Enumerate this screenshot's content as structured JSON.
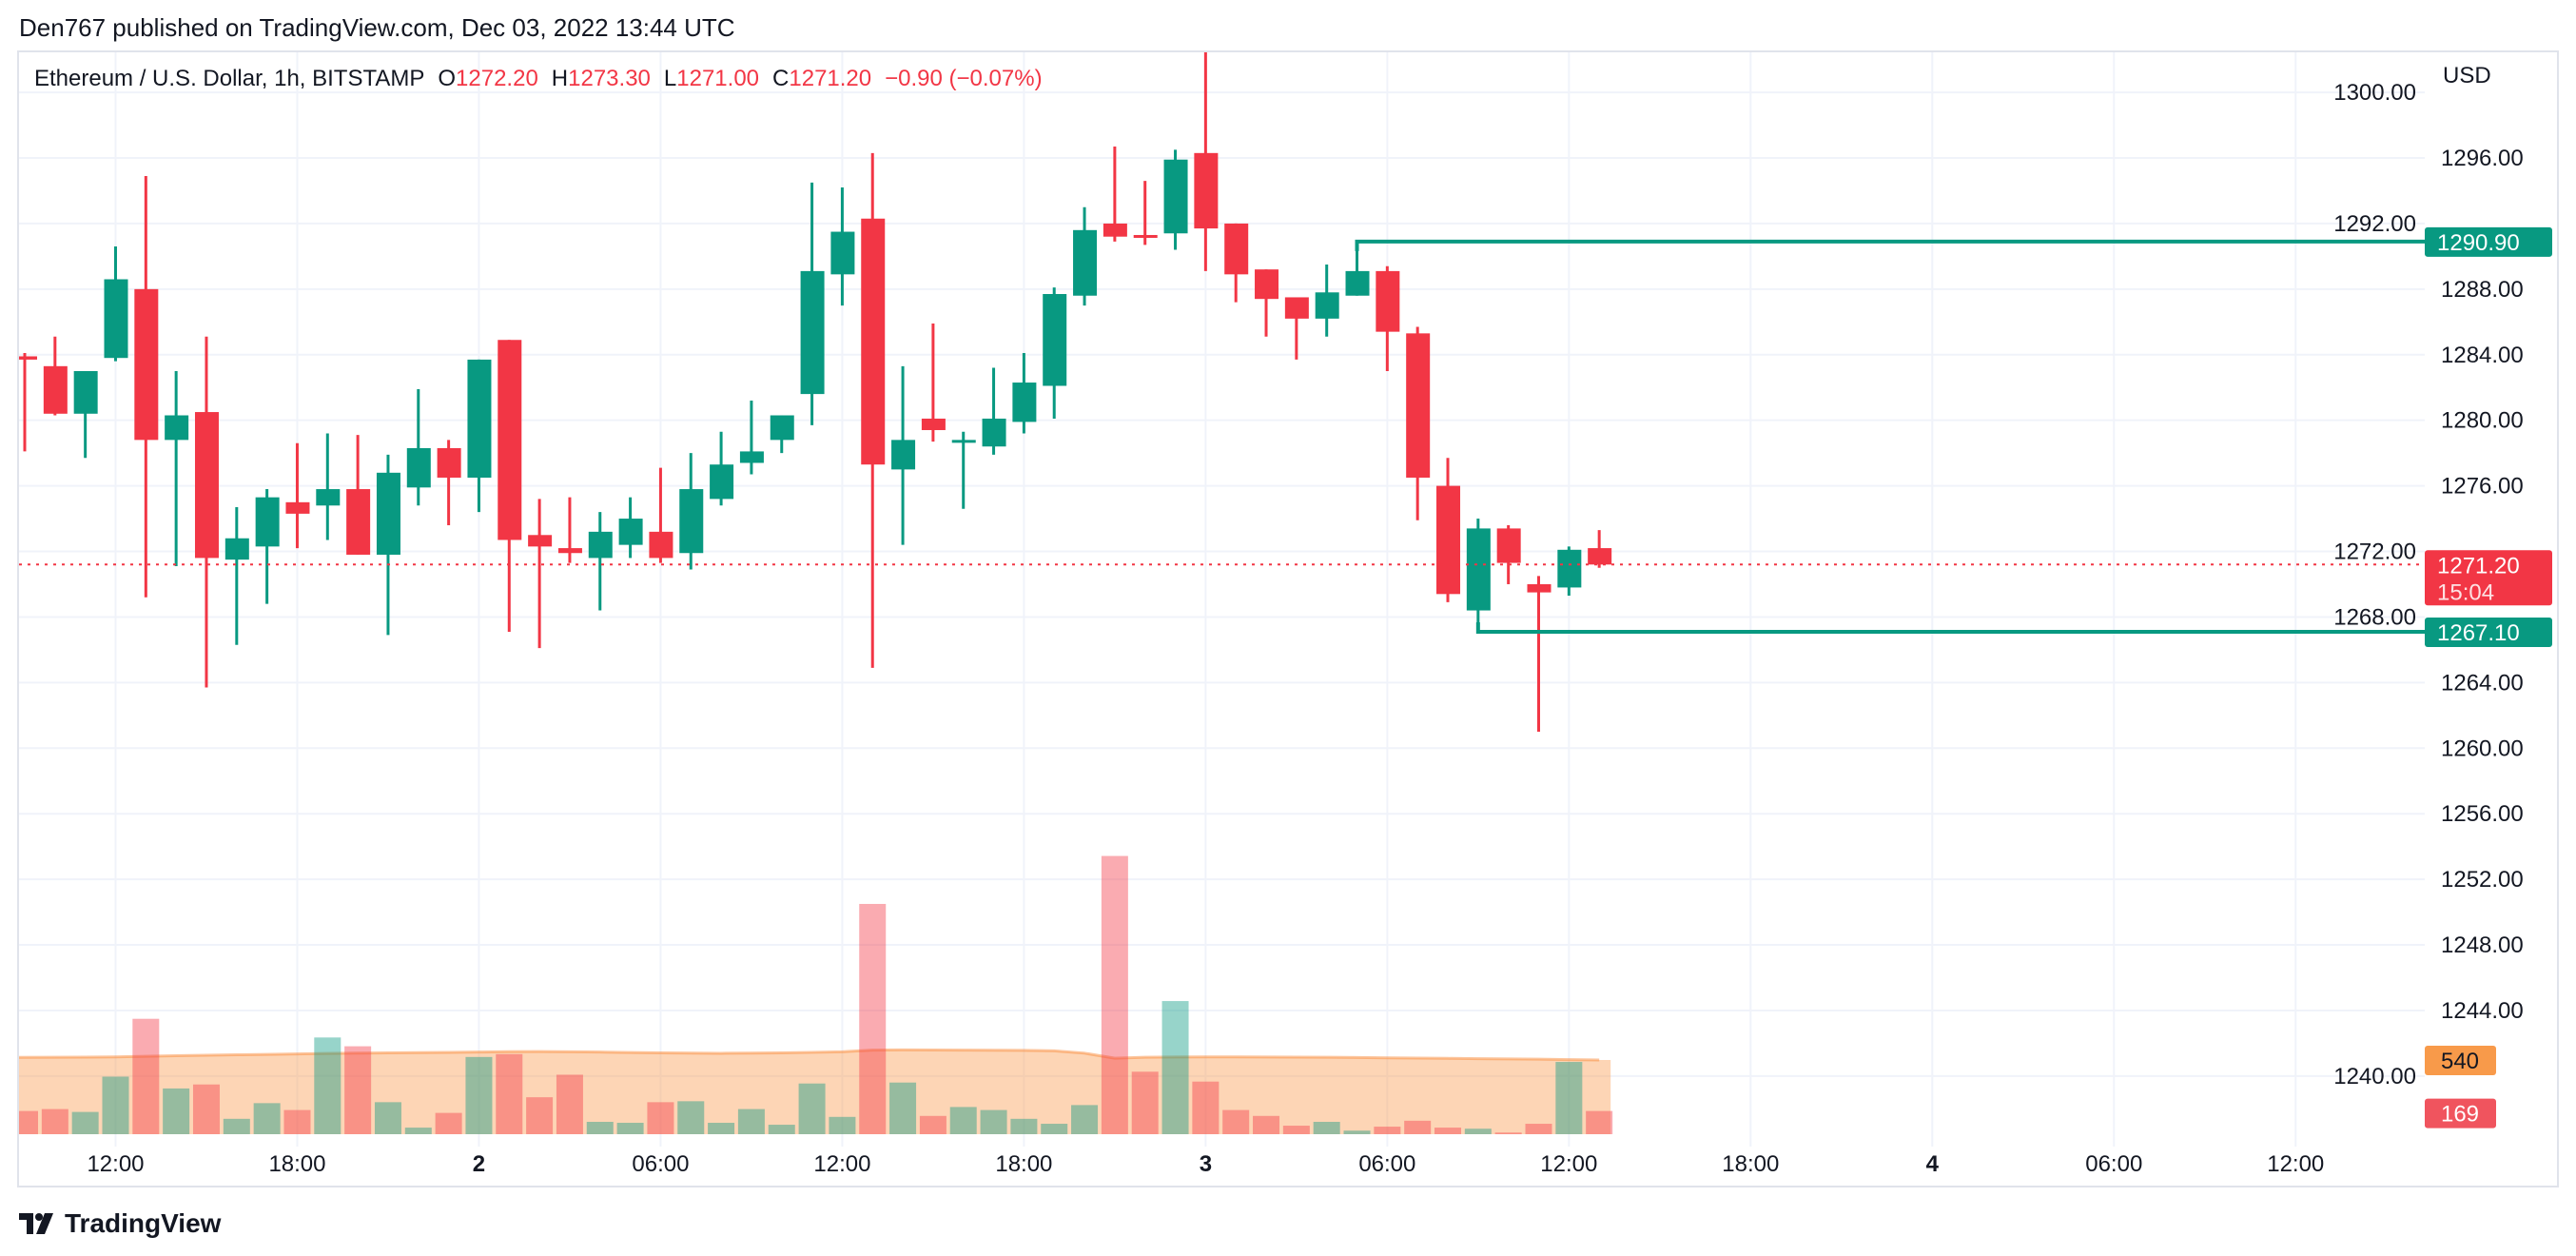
{
  "publish_line": "Den767 published on TradingView.com, Dec 03, 2022 13:44 UTC",
  "legend": {
    "symbol": "Ethereum / U.S. Dollar, 1h, BITSTAMP",
    "o_label": "O",
    "o": "1272.20",
    "h_label": "H",
    "h": "1273.30",
    "l_label": "L",
    "l": "1271.00",
    "c_label": "C",
    "c": "1271.20",
    "change": "−0.90 (−0.07%)"
  },
  "price_axis": {
    "currency": "USD",
    "labels": [
      "1300.00",
      "1296.00",
      "1292.00",
      "1288.00",
      "1284.00",
      "1280.00",
      "1276.00",
      "1272.00",
      "1268.00",
      "1264.00",
      "1260.00",
      "1256.00",
      "1252.00",
      "1248.00",
      "1244.00",
      "1240.00"
    ]
  },
  "badges": {
    "resistance": "1290.90",
    "last_price": "1271.20",
    "countdown": "15:04",
    "support": "1267.10",
    "volume_ma": "540",
    "volume_last": "169"
  },
  "time_axis": [
    "12:00",
    "18:00",
    "2",
    "06:00",
    "12:00",
    "18:00",
    "3",
    "06:00",
    "12:00",
    "18:00",
    "4",
    "06:00",
    "12:00"
  ],
  "brand": "TradingView",
  "colors": {
    "up": "#089981",
    "down": "#f23645",
    "volume_ma": "#f89a4a",
    "grid": "#f0f3fa"
  },
  "chart_data": {
    "type": "candlestick",
    "interval": "1h",
    "ylim": [
      1238,
      1303
    ],
    "grid": true,
    "horizontal_levels": [
      1290.9,
      1267.1
    ],
    "last_price": 1271.2,
    "volume_ma_last": 540,
    "candles": [
      {
        "t": "12/01 09:00",
        "o": 1283.9,
        "h": 1284.1,
        "l": 1278.1,
        "c": 1283.7,
        "v": 169,
        "ma": 559
      },
      {
        "t": "12/01 10:00",
        "o": 1283.3,
        "h": 1285.1,
        "l": 1280.3,
        "c": 1280.4,
        "v": 183,
        "ma": 560
      },
      {
        "t": "12/01 11:00",
        "o": 1280.4,
        "h": 1283.0,
        "l": 1277.7,
        "c": 1283.0,
        "v": 162,
        "ma": 561
      },
      {
        "t": "12/01 12:00",
        "o": 1283.8,
        "h": 1290.6,
        "l": 1283.6,
        "c": 1288.6,
        "v": 419,
        "ma": 563
      },
      {
        "t": "12/01 13:00",
        "o": 1288.0,
        "h": 1294.9,
        "l": 1269.2,
        "c": 1278.8,
        "v": 840,
        "ma": 567
      },
      {
        "t": "12/01 14:00",
        "o": 1278.8,
        "h": 1283.0,
        "l": 1271.1,
        "c": 1280.3,
        "v": 333,
        "ma": 571
      },
      {
        "t": "12/01 15:00",
        "o": 1280.5,
        "h": 1285.1,
        "l": 1263.7,
        "c": 1271.6,
        "v": 362,
        "ma": 575
      },
      {
        "t": "12/01 16:00",
        "o": 1271.5,
        "h": 1274.7,
        "l": 1266.3,
        "c": 1272.8,
        "v": 112,
        "ma": 578
      },
      {
        "t": "12/01 17:00",
        "o": 1272.3,
        "h": 1275.8,
        "l": 1268.8,
        "c": 1275.3,
        "v": 226,
        "ma": 581
      },
      {
        "t": "12/01 18:00",
        "o": 1275.0,
        "h": 1278.6,
        "l": 1272.2,
        "c": 1274.3,
        "v": 176,
        "ma": 584
      },
      {
        "t": "12/01 19:00",
        "o": 1274.8,
        "h": 1279.2,
        "l": 1272.7,
        "c": 1275.8,
        "v": 704,
        "ma": 588
      },
      {
        "t": "12/01 20:00",
        "o": 1275.8,
        "h": 1279.1,
        "l": 1271.8,
        "c": 1271.8,
        "v": 640,
        "ma": 590
      },
      {
        "t": "12/01 21:00",
        "o": 1271.8,
        "h": 1277.9,
        "l": 1266.9,
        "c": 1276.8,
        "v": 233,
        "ma": 592
      },
      {
        "t": "12/01 22:00",
        "o": 1275.9,
        "h": 1281.9,
        "l": 1274.8,
        "c": 1278.3,
        "v": 48,
        "ma": 594
      },
      {
        "t": "12/01 23:00",
        "o": 1278.3,
        "h": 1278.8,
        "l": 1273.6,
        "c": 1276.5,
        "v": 155,
        "ma": 596
      },
      {
        "t": "12/02 00:00",
        "o": 1276.5,
        "h": 1283.7,
        "l": 1274.4,
        "c": 1283.7,
        "v": 562,
        "ma": 598
      },
      {
        "t": "12/02 01:00",
        "o": 1284.9,
        "h": 1284.9,
        "l": 1267.1,
        "c": 1272.7,
        "v": 583,
        "ma": 601
      },
      {
        "t": "12/02 02:00",
        "o": 1273.0,
        "h": 1275.2,
        "l": 1266.1,
        "c": 1272.3,
        "v": 269,
        "ma": 602
      },
      {
        "t": "12/02 03:00",
        "o": 1272.2,
        "h": 1275.3,
        "l": 1271.3,
        "c": 1271.9,
        "v": 433,
        "ma": 600
      },
      {
        "t": "12/02 04:00",
        "o": 1271.6,
        "h": 1274.4,
        "l": 1268.4,
        "c": 1273.2,
        "v": 90,
        "ma": 598
      },
      {
        "t": "12/02 05:00",
        "o": 1272.4,
        "h": 1275.3,
        "l": 1271.6,
        "c": 1274.0,
        "v": 83,
        "ma": 595
      },
      {
        "t": "12/02 06:00",
        "o": 1273.2,
        "h": 1277.1,
        "l": 1271.3,
        "c": 1271.6,
        "v": 233,
        "ma": 592
      },
      {
        "t": "12/02 07:00",
        "o": 1271.9,
        "h": 1278.0,
        "l": 1270.9,
        "c": 1275.8,
        "v": 240,
        "ma": 590
      },
      {
        "t": "12/02 08:00",
        "o": 1275.2,
        "h": 1279.3,
        "l": 1274.8,
        "c": 1277.3,
        "v": 83,
        "ma": 589
      },
      {
        "t": "12/02 09:00",
        "o": 1277.4,
        "h": 1281.2,
        "l": 1276.7,
        "c": 1278.1,
        "v": 183,
        "ma": 590
      },
      {
        "t": "12/02 10:00",
        "o": 1278.8,
        "h": 1280.3,
        "l": 1278.0,
        "c": 1280.3,
        "v": 69,
        "ma": 592
      },
      {
        "t": "12/02 11:00",
        "o": 1281.6,
        "h": 1294.5,
        "l": 1279.7,
        "c": 1289.1,
        "v": 369,
        "ma": 596
      },
      {
        "t": "12/02 12:00",
        "o": 1288.9,
        "h": 1294.2,
        "l": 1287.0,
        "c": 1291.5,
        "v": 126,
        "ma": 600
      },
      {
        "t": "12/02 13:00",
        "o": 1292.3,
        "h": 1296.3,
        "l": 1264.9,
        "c": 1277.3,
        "v": 1676,
        "ma": 612
      },
      {
        "t": "12/02 14:00",
        "o": 1277.0,
        "h": 1283.3,
        "l": 1272.4,
        "c": 1278.8,
        "v": 376,
        "ma": 614
      },
      {
        "t": "12/02 15:00",
        "o": 1280.1,
        "h": 1285.9,
        "l": 1278.7,
        "c": 1279.4,
        "v": 133,
        "ma": 613
      },
      {
        "t": "12/02 16:00",
        "o": 1278.7,
        "h": 1279.3,
        "l": 1274.6,
        "c": 1278.8,
        "v": 198,
        "ma": 612
      },
      {
        "t": "12/02 17:00",
        "o": 1278.4,
        "h": 1283.2,
        "l": 1277.9,
        "c": 1280.1,
        "v": 176,
        "ma": 611
      },
      {
        "t": "12/02 18:00",
        "o": 1279.9,
        "h": 1284.1,
        "l": 1279.2,
        "c": 1282.3,
        "v": 112,
        "ma": 610
      },
      {
        "t": "12/02 19:00",
        "o": 1282.1,
        "h": 1288.1,
        "l": 1280.1,
        "c": 1287.7,
        "v": 76,
        "ma": 607
      },
      {
        "t": "12/02 20:00",
        "o": 1287.6,
        "h": 1293.0,
        "l": 1287.0,
        "c": 1291.6,
        "v": 212,
        "ma": 590
      },
      {
        "t": "12/02 21:00",
        "o": 1292.0,
        "h": 1296.7,
        "l": 1290.9,
        "c": 1291.2,
        "v": 2025,
        "ma": 553
      },
      {
        "t": "12/02 22:00",
        "o": 1291.3,
        "h": 1294.6,
        "l": 1290.7,
        "c": 1291.2,
        "v": 455,
        "ma": 560
      },
      {
        "t": "12/02 23:00",
        "o": 1291.4,
        "h": 1296.5,
        "l": 1290.4,
        "c": 1295.9,
        "v": 969,
        "ma": 562
      },
      {
        "t": "12/03 00:00",
        "o": 1296.3,
        "h": 1302.5,
        "l": 1289.1,
        "c": 1291.7,
        "v": 383,
        "ma": 563
      },
      {
        "t": "12/03 01:00",
        "o": 1292.0,
        "h": 1292.0,
        "l": 1287.2,
        "c": 1288.9,
        "v": 176,
        "ma": 563
      },
      {
        "t": "12/03 02:00",
        "o": 1289.2,
        "h": 1289.2,
        "l": 1285.1,
        "c": 1287.4,
        "v": 133,
        "ma": 562
      },
      {
        "t": "12/03 03:00",
        "o": 1287.5,
        "h": 1287.5,
        "l": 1283.7,
        "c": 1286.2,
        "v": 62,
        "ma": 561
      },
      {
        "t": "12/03 04:00",
        "o": 1286.2,
        "h": 1289.5,
        "l": 1285.1,
        "c": 1287.8,
        "v": 90,
        "ma": 560
      },
      {
        "t": "12/03 05:00",
        "o": 1287.6,
        "h": 1290.9,
        "l": 1287.6,
        "c": 1289.1,
        "v": 26,
        "ma": 558
      },
      {
        "t": "12/03 06:00",
        "o": 1289.1,
        "h": 1289.4,
        "l": 1283.0,
        "c": 1285.4,
        "v": 55,
        "ma": 556
      },
      {
        "t": "12/03 07:00",
        "o": 1285.3,
        "h": 1285.7,
        "l": 1273.9,
        "c": 1276.5,
        "v": 98,
        "ma": 554
      },
      {
        "t": "12/03 08:00",
        "o": 1276.0,
        "h": 1277.7,
        "l": 1268.9,
        "c": 1269.4,
        "v": 48,
        "ma": 552
      },
      {
        "t": "12/03 09:00",
        "o": 1268.4,
        "h": 1274.0,
        "l": 1267.1,
        "c": 1273.4,
        "v": 40,
        "ma": 550
      },
      {
        "t": "12/03 10:00",
        "o": 1273.4,
        "h": 1273.6,
        "l": 1270.0,
        "c": 1271.3,
        "v": 12,
        "ma": 548
      },
      {
        "t": "12/03 11:00",
        "o": 1270.0,
        "h": 1270.5,
        "l": 1261.0,
        "c": 1269.5,
        "v": 76,
        "ma": 546
      },
      {
        "t": "12/03 12:00",
        "o": 1269.8,
        "h": 1272.3,
        "l": 1269.3,
        "c": 1272.1,
        "v": 526,
        "ma": 543
      },
      {
        "t": "12/03 13:00",
        "o": 1272.2,
        "h": 1273.3,
        "l": 1271.0,
        "c": 1271.2,
        "v": 169,
        "ma": 540
      }
    ]
  }
}
